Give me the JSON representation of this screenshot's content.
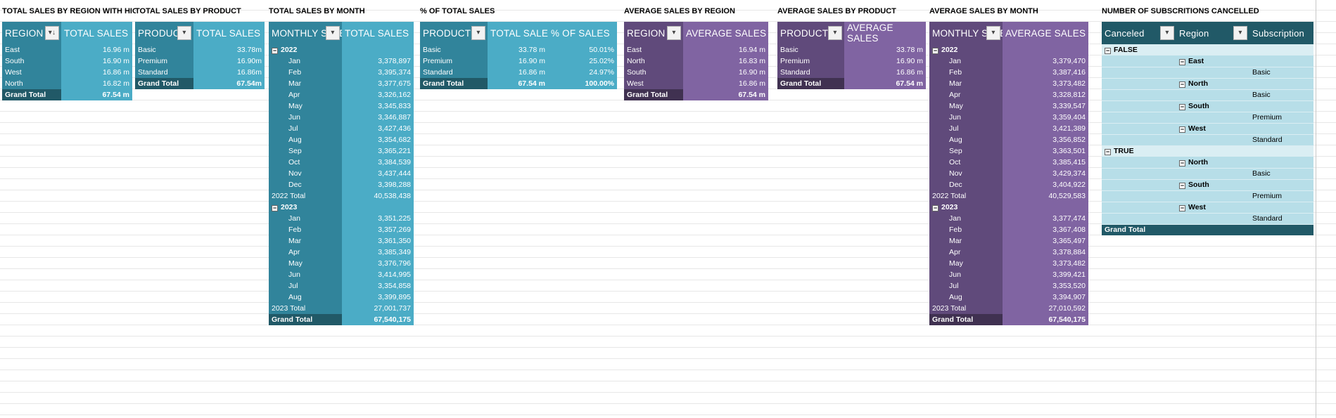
{
  "pivots": {
    "region": {
      "title": "TOTAL SALES BY REGION WITH HIGHEST",
      "headers": [
        "REGION",
        "TOTAL SALES"
      ],
      "rows": [
        [
          "East",
          "16.96 m"
        ],
        [
          "South",
          "16.90 m"
        ],
        [
          "West",
          "16.86 m"
        ],
        [
          "North",
          "16.82 m"
        ]
      ],
      "total": [
        "Grand Total",
        "67.54 m"
      ]
    },
    "product": {
      "title": "TOTAL  SALES BY PRODUCT",
      "headers": [
        "PRODUCT",
        "TOTAL SALES"
      ],
      "rows": [
        [
          "Basic",
          "33.78m"
        ],
        [
          "Premium",
          "16.90m"
        ],
        [
          "Standard",
          "16.86m"
        ]
      ],
      "total": [
        "Grand Total",
        "67.54m"
      ]
    },
    "month": {
      "title": "TOTAL SALES BY MONTH",
      "headers": [
        "MONTHLY SALES",
        "TOTAL SALES"
      ],
      "years": [
        {
          "year": "2022",
          "months": [
            [
              "Jan",
              "3,378,897"
            ],
            [
              "Feb",
              "3,395,374"
            ],
            [
              "Mar",
              "3,377,675"
            ],
            [
              "Apr",
              "3,326,162"
            ],
            [
              "May",
              "3,345,833"
            ],
            [
              "Jun",
              "3,346,887"
            ],
            [
              "Jul",
              "3,427,436"
            ],
            [
              "Aug",
              "3,354,682"
            ],
            [
              "Sep",
              "3,365,221"
            ],
            [
              "Oct",
              "3,384,539"
            ],
            [
              "Nov",
              "3,437,444"
            ],
            [
              "Dec",
              "3,398,288"
            ]
          ],
          "total": [
            "2022 Total",
            "40,538,438"
          ]
        },
        {
          "year": "2023",
          "months": [
            [
              "Jan",
              "3,351,225"
            ],
            [
              "Feb",
              "3,357,269"
            ],
            [
              "Mar",
              "3,361,350"
            ],
            [
              "Apr",
              "3,385,349"
            ],
            [
              "May",
              "3,376,796"
            ],
            [
              "Jun",
              "3,414,995"
            ],
            [
              "Jul",
              "3,354,858"
            ],
            [
              "Aug",
              "3,399,895"
            ]
          ],
          "total": [
            "2023 Total",
            "27,001,737"
          ]
        }
      ],
      "total": [
        "Grand Total",
        "67,540,175"
      ]
    },
    "pct": {
      "title": "% OF TOTAL SALES",
      "headers": [
        "PRODUCT",
        "TOTAL SALES",
        "% OF SALES"
      ],
      "rows": [
        [
          "Basic",
          "33.78 m",
          "50.01%"
        ],
        [
          "Premium",
          "16.90 m",
          "25.02%"
        ],
        [
          "Standard",
          "16.86 m",
          "24.97%"
        ]
      ],
      "total": [
        "Grand Total",
        "67.54 m",
        "100.00%"
      ]
    },
    "avg_region": {
      "title": "AVERAGE SALES BY REGION",
      "headers": [
        "REGION",
        "AVERAGE SALES"
      ],
      "rows": [
        [
          "East",
          "16.94 m"
        ],
        [
          "North",
          "16.83 m"
        ],
        [
          "South",
          "16.90 m"
        ],
        [
          "West",
          "16.86 m"
        ]
      ],
      "total": [
        "Grand Total",
        "67.54 m"
      ]
    },
    "avg_product": {
      "title": "AVERAGE SALES BY PRODUCT",
      "headers": [
        "PRODUCT",
        "AVERAGE SALES"
      ],
      "rows": [
        [
          "Basic",
          "33.78 m"
        ],
        [
          "Premium",
          "16.90 m"
        ],
        [
          "Standard",
          "16.86 m"
        ]
      ],
      "total": [
        "Grand Total",
        "67.54 m"
      ]
    },
    "avg_month": {
      "title": "AVERAGE SALES BY MONTH",
      "headers": [
        "MONTHLY SALES",
        "AVERAGE SALES"
      ],
      "years": [
        {
          "year": "2022",
          "months": [
            [
              "Jan",
              "3,379,470"
            ],
            [
              "Feb",
              "3,387,416"
            ],
            [
              "Mar",
              "3,373,482"
            ],
            [
              "Apr",
              "3,328,812"
            ],
            [
              "May",
              "3,339,547"
            ],
            [
              "Jun",
              "3,359,404"
            ],
            [
              "Jul",
              "3,421,389"
            ],
            [
              "Aug",
              "3,356,852"
            ],
            [
              "Sep",
              "3,363,501"
            ],
            [
              "Oct",
              "3,385,415"
            ],
            [
              "Nov",
              "3,429,374"
            ],
            [
              "Dec",
              "3,404,922"
            ]
          ],
          "total": [
            "2022 Total",
            "40,529,583"
          ]
        },
        {
          "year": "2023",
          "months": [
            [
              "Jan",
              "3,377,474"
            ],
            [
              "Feb",
              "3,367,408"
            ],
            [
              "Mar",
              "3,365,497"
            ],
            [
              "Apr",
              "3,378,884"
            ],
            [
              "May",
              "3,373,482"
            ],
            [
              "Jun",
              "3,399,421"
            ],
            [
              "Jul",
              "3,353,520"
            ],
            [
              "Aug",
              "3,394,907"
            ]
          ],
          "total": [
            "2023 Total",
            "27,010,592"
          ]
        }
      ],
      "total": [
        "Grand Total",
        "67,540,175"
      ]
    },
    "subs": {
      "title": "NUMBER OF SUBSCRITIONS CANCELLED",
      "headers": [
        "Canceled",
        "Region",
        "Subscription"
      ],
      "groups": [
        {
          "label": "FALSE",
          "regions": [
            [
              "East",
              "Basic"
            ],
            [
              "North",
              "Basic"
            ],
            [
              "South",
              "Premium"
            ],
            [
              "West",
              "Standard"
            ]
          ]
        },
        {
          "label": "TRUE",
          "regions": [
            [
              "North",
              "Basic"
            ],
            [
              "South",
              "Premium"
            ],
            [
              "West",
              "Standard"
            ]
          ]
        }
      ],
      "total": "Grand Total"
    }
  },
  "ui": {
    "dropdown_glyph": "▾",
    "sort_glyph": "▾↓",
    "collapse_glyph": "−"
  }
}
